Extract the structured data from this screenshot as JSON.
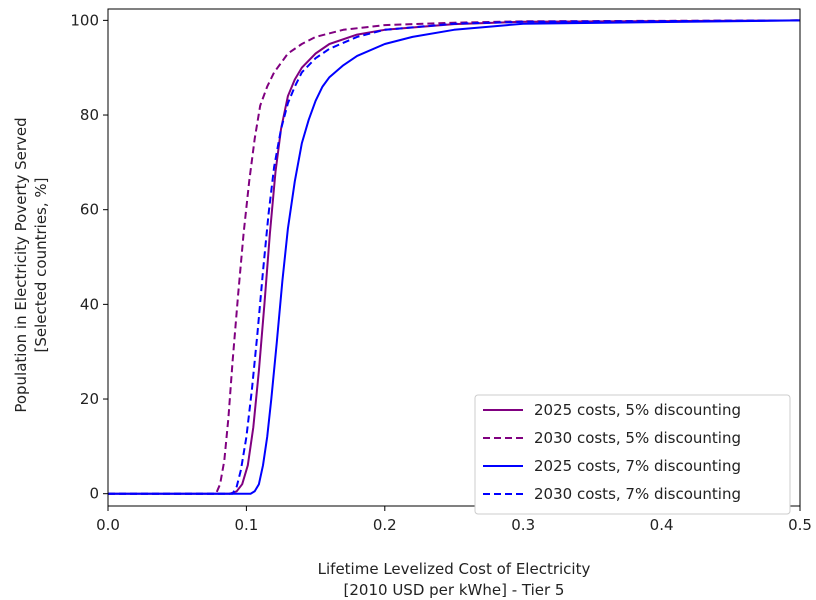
{
  "chart_data": {
    "type": "line",
    "title": "",
    "xlabel": [
      "Lifetime Levelized Cost of Electricity",
      "[2010 USD per kWhe] - Tier 5"
    ],
    "ylabel": [
      "Population in Electricity Poverty Served",
      "[Selected countries, %]"
    ],
    "xlim": [
      0.0,
      0.5
    ],
    "ylim": [
      -2.6,
      102.4
    ],
    "xticks": [
      0.0,
      0.1,
      0.2,
      0.3,
      0.4,
      0.5
    ],
    "xtick_labels": [
      "0.0",
      "0.1",
      "0.2",
      "0.3",
      "0.4",
      "0.5"
    ],
    "yticks": [
      0,
      20,
      40,
      60,
      80,
      100
    ],
    "ytick_labels": [
      "0",
      "20",
      "40",
      "60",
      "80",
      "100"
    ],
    "grid": false,
    "legend_position": "lower-right",
    "series": [
      {
        "name": "2025 costs, 5% discounting",
        "color": "#800080",
        "dash": "solid",
        "x": [
          0.0,
          0.088,
          0.093,
          0.097,
          0.101,
          0.105,
          0.109,
          0.113,
          0.117,
          0.121,
          0.125,
          0.13,
          0.135,
          0.14,
          0.15,
          0.16,
          0.18,
          0.2,
          0.25,
          0.3,
          0.5
        ],
        "y": [
          0,
          0,
          0.5,
          2,
          6,
          14,
          26,
          40,
          55,
          68,
          77,
          84,
          87.5,
          90,
          93,
          95,
          97,
          98,
          99.2,
          99.7,
          100
        ]
      },
      {
        "name": "2030 costs, 5% discounting",
        "color": "#800080",
        "dash": "dashed",
        "x": [
          0.0,
          0.078,
          0.081,
          0.084,
          0.087,
          0.09,
          0.094,
          0.098,
          0.102,
          0.106,
          0.11,
          0.115,
          0.12,
          0.125,
          0.13,
          0.14,
          0.15,
          0.17,
          0.2,
          0.25,
          0.3,
          0.5
        ],
        "y": [
          0,
          0,
          2,
          7,
          16,
          28,
          42,
          55,
          66,
          75,
          82,
          86,
          89,
          91,
          93,
          95,
          96.5,
          98,
          99,
          99.5,
          99.8,
          100
        ]
      },
      {
        "name": "2025 costs, 7% discounting",
        "color": "#0000ff",
        "dash": "solid",
        "x": [
          0.0,
          0.103,
          0.106,
          0.109,
          0.112,
          0.115,
          0.118,
          0.122,
          0.126,
          0.13,
          0.135,
          0.14,
          0.145,
          0.15,
          0.155,
          0.16,
          0.17,
          0.18,
          0.2,
          0.22,
          0.25,
          0.3,
          0.5
        ],
        "y": [
          0,
          0,
          0.5,
          2,
          6,
          12,
          20,
          32,
          45,
          56,
          66,
          74,
          79,
          83,
          86,
          88,
          90.5,
          92.5,
          95,
          96.5,
          98,
          99.3,
          100
        ]
      },
      {
        "name": "2030 costs, 7% discounting",
        "color": "#0000ff",
        "dash": "dashed",
        "x": [
          0.0,
          0.09,
          0.093,
          0.096,
          0.1,
          0.104,
          0.108,
          0.112,
          0.116,
          0.12,
          0.125,
          0.13,
          0.135,
          0.14,
          0.15,
          0.16,
          0.18,
          0.2,
          0.25,
          0.3,
          0.5
        ],
        "y": [
          0,
          0,
          1.5,
          5,
          12,
          22,
          34,
          47,
          59,
          69,
          77,
          82.5,
          86,
          89,
          92,
          94,
          96.5,
          98,
          99.3,
          99.7,
          100
        ]
      }
    ]
  }
}
